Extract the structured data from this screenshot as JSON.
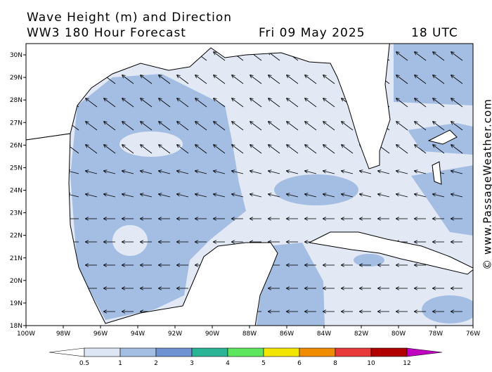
{
  "header": {
    "title": "Wave Height (m) and Direction",
    "subtitle": "WW3 180 Hour Forecast",
    "date": "Fri 09 May 2025",
    "time": "18 UTC"
  },
  "map": {
    "x_ticks": [
      "100W",
      "98W",
      "96W",
      "94W",
      "92W",
      "90W",
      "88W",
      "86W",
      "84W",
      "82W",
      "80W",
      "78W",
      "76W"
    ],
    "y_ticks": [
      "18N",
      "19N",
      "20N",
      "21N",
      "22N",
      "23N",
      "24N",
      "25N",
      "26N",
      "27N",
      "28N",
      "29N",
      "30N"
    ]
  },
  "colorbar": {
    "labels": [
      "0.5",
      "1",
      "2",
      "3",
      "4",
      "5",
      "6",
      "8",
      "10",
      "12"
    ],
    "colors": [
      "#dde6f5",
      "#a4bde3",
      "#6f93d2",
      "#2bb596",
      "#5ee65e",
      "#f2e600",
      "#f08c00",
      "#e83a3a",
      "#b00000"
    ],
    "low_color": "#ffffff",
    "high_color": "#c000c0"
  },
  "watermark": "© www.PassageWeather.com"
}
